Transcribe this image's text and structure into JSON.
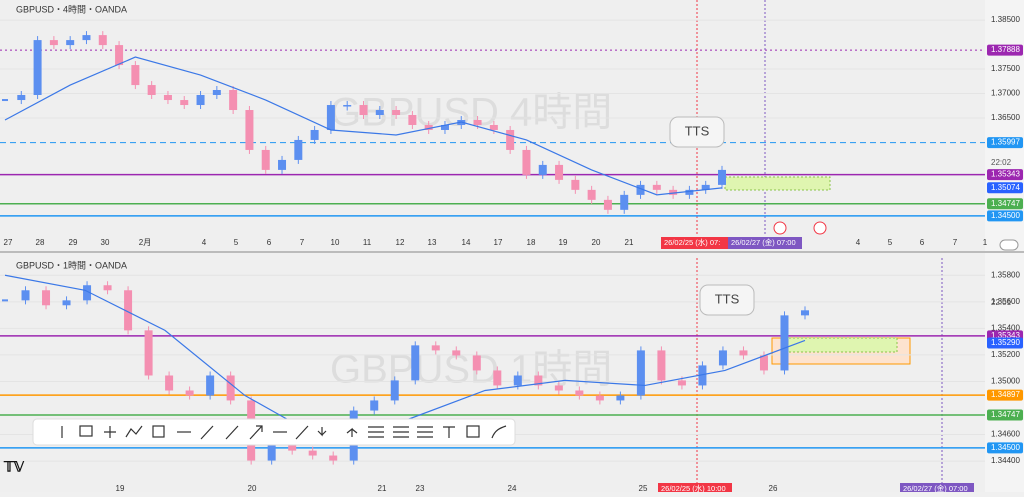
{
  "chart_data": [
    {
      "type": "line",
      "title": "GBPUSD・4時間・OANDA",
      "watermark": "GBPUSD  4時間",
      "annotation": "TTS",
      "countdown": "22:02",
      "ylim": [
        1.3417,
        1.3885
      ],
      "yticks": [
        {
          "value": 1.385,
          "label": "1.38500"
        },
        {
          "value": 1.375,
          "label": "1.37500"
        },
        {
          "value": 1.37,
          "label": "1.37000"
        },
        {
          "value": 1.365,
          "label": "1.36500"
        }
      ],
      "series": [
        {
          "color": "#f48fb1",
          "up_color": "#5c8ff0",
          "style": "candle",
          "values": [
            1.36867,
            1.3697,
            1.38092,
            1.3799,
            1.38092,
            1.38194,
            1.3799,
            1.37582,
            1.37173,
            1.3697,
            1.36867,
            1.36765,
            1.3697,
            1.37072,
            1.36663,
            1.35847,
            1.35439,
            1.35643,
            1.36051,
            1.36255,
            1.36765,
            1.36765,
            1.36561,
            1.36663,
            1.36561,
            1.36357,
            1.36255,
            1.36357,
            1.36459,
            1.36357,
            1.36255,
            1.35847,
            1.35337,
            1.35541,
            1.35235,
            1.35031,
            1.34827,
            1.34623,
            1.34929,
            1.35133,
            1.35031,
            1.34929,
            1.35031,
            1.35133,
            1.35439
          ]
        },
        {
          "color": "#3b78e7",
          "style": "line",
          "values": [
            1.36459,
            1.37173,
            1.37745,
            1.37378,
            1.36867,
            1.36255,
            1.36153,
            1.36418,
            1.36051,
            1.35439,
            1.34929,
            1.35072
          ]
        }
      ],
      "levels": [
        {
          "value": 1.37888,
          "label": "1.37888",
          "color": "#9c27b0",
          "line": "dotted"
        },
        {
          "value": 1.35997,
          "label": "1.35997",
          "color": "#2196f3",
          "line": "dashed"
        },
        {
          "value": 1.35343,
          "label": "1.35343",
          "color": "#9c27b0",
          "line": "solid"
        },
        {
          "value": 1.35074,
          "label": "1.35074",
          "color": "#2962ff",
          "line": "none"
        },
        {
          "value": 1.34747,
          "label": "1.34747",
          "color": "#4caf50",
          "line": "solid"
        },
        {
          "value": 1.345,
          "label": "1.34500",
          "color": "#2196f3",
          "line": "solid"
        }
      ],
      "time_labels": [
        "27",
        "28",
        "29",
        "30",
        "2月",
        "4",
        "5",
        "6",
        "7",
        "10",
        "11",
        "12",
        "13",
        "14",
        "17",
        "18",
        "19",
        "20",
        "21",
        "4",
        "5",
        "6",
        "7",
        "1"
      ],
      "time_tags": [
        {
          "label": "26/02/25 (水)  07:",
          "color": "#f23645"
        },
        {
          "label": "26/02/27 (金)  07:00",
          "color": "#7e57c2"
        }
      ]
    },
    {
      "type": "line",
      "title": "GBPUSD・1時間・OANDA",
      "watermark": "GBPUSD  1時間",
      "annotation": "TTS",
      "countdown": "22:01",
      "ylim": [
        1.3422,
        1.359
      ],
      "yticks": [
        {
          "value": 1.358,
          "label": "1.35800"
        },
        {
          "value": 1.356,
          "label": "1.35600"
        },
        {
          "value": 1.354,
          "label": "1.35400"
        },
        {
          "value": 1.352,
          "label": "1.35200"
        },
        {
          "value": 1.35,
          "label": "1.35000"
        },
        {
          "value": 1.346,
          "label": "1.34600"
        },
        {
          "value": 1.344,
          "label": "1.34400"
        }
      ],
      "series": [
        {
          "color": "#f48fb1",
          "up_color": "#5c8ff0",
          "style": "candle",
          "values": [
            1.35611,
            1.35687,
            1.35574,
            1.35611,
            1.35725,
            1.35687,
            1.35385,
            1.35045,
            1.34932,
            1.34894,
            1.35045,
            1.34857,
            1.34404,
            1.34555,
            1.34479,
            1.34442,
            1.34404,
            1.34781,
            1.34857,
            1.35008,
            1.35272,
            1.35234,
            1.35196,
            1.35083,
            1.3497,
            1.35045,
            1.3497,
            1.34932,
            1.34894,
            1.34857,
            1.34894,
            1.35234,
            1.35008,
            1.3497,
            1.35121,
            1.35234,
            1.35196,
            1.35083,
            1.35498,
            1.35536
          ]
        },
        {
          "color": "#3b78e7",
          "style": "line",
          "values": [
            1.358,
            1.35687,
            1.35385,
            1.34894,
            1.34555,
            1.34706,
            1.34932,
            1.35008,
            1.3497,
            1.35083,
            1.35309
          ]
        }
      ],
      "levels": [
        {
          "value": 1.35343,
          "label": "1.35343",
          "color": "#9c27b0",
          "line": "solid"
        },
        {
          "value": 1.3529,
          "label": "1.35290",
          "color": "#2962ff",
          "line": "none"
        },
        {
          "value": 1.34897,
          "label": "1.34897",
          "color": "#ff9800",
          "line": "solid"
        },
        {
          "value": 1.34747,
          "label": "1.34747",
          "color": "#4caf50",
          "line": "solid"
        },
        {
          "value": 1.345,
          "label": "1.34500",
          "color": "#2196f3",
          "line": "solid"
        }
      ],
      "time_labels": [
        "19",
        "20",
        "21",
        "23",
        "24",
        "25",
        "26"
      ],
      "time_tags": [
        {
          "label": "26/02/25 (水)  10:00",
          "color": "#f23645"
        },
        {
          "label": "26/02/27 (金)  07:00",
          "color": "#7e57c2"
        }
      ]
    }
  ]
}
